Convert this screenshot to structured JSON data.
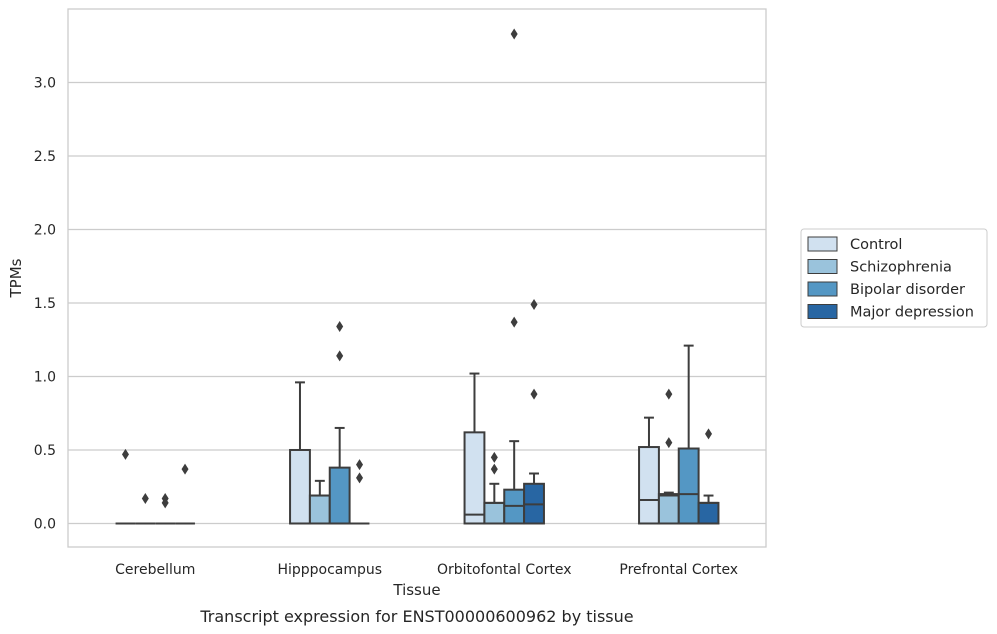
{
  "caption": "Transcript expression for ENST00000600962 by tissue",
  "chart_data": {
    "type": "boxplot",
    "xlabel": "Tissue",
    "ylabel": "TPMs",
    "ylim": [
      -0.16,
      3.5
    ],
    "yticks": [
      "0.0",
      "0.5",
      "1.0",
      "1.5",
      "2.0",
      "2.5",
      "3.0"
    ],
    "grid": true,
    "legend_position": "right",
    "categories": [
      "Cerebellum",
      "Hipppocampus",
      "Orbitofontal Cortex",
      "Prefrontal Cortex"
    ],
    "series": [
      {
        "name": "Control",
        "color": "#d1e1f0",
        "boxes": [
          {
            "q1": 0,
            "median": 0,
            "q3": 0,
            "whisker_low": 0,
            "whisker_high": 0,
            "outliers": [
              0.47
            ]
          },
          {
            "q1": 0,
            "median": 0,
            "q3": 0.5,
            "whisker_low": 0,
            "whisker_high": 0.96,
            "outliers": []
          },
          {
            "q1": 0,
            "median": 0.06,
            "q3": 0.62,
            "whisker_low": 0,
            "whisker_high": 1.02,
            "outliers": []
          },
          {
            "q1": 0,
            "median": 0.16,
            "q3": 0.52,
            "whisker_low": 0,
            "whisker_high": 0.72,
            "outliers": []
          }
        ]
      },
      {
        "name": "Schizophrenia",
        "color": "#9ac3dc",
        "boxes": [
          {
            "q1": 0,
            "median": 0,
            "q3": 0,
            "whisker_low": 0,
            "whisker_high": 0,
            "outliers": [
              0.17
            ]
          },
          {
            "q1": 0,
            "median": 0.19,
            "q3": 0.19,
            "whisker_low": 0,
            "whisker_high": 0.29,
            "outliers": []
          },
          {
            "q1": 0,
            "median": 0.14,
            "q3": 0.14,
            "whisker_low": 0,
            "whisker_high": 0.27,
            "outliers": [
              0.37,
              0.45
            ]
          },
          {
            "q1": 0,
            "median": 0.19,
            "q3": 0.2,
            "whisker_low": 0,
            "whisker_high": 0.21,
            "outliers": [
              0.55,
              0.88
            ]
          }
        ]
      },
      {
        "name": "Bipolar disorder",
        "color": "#5497c4",
        "boxes": [
          {
            "q1": 0,
            "median": 0,
            "q3": 0,
            "whisker_low": 0,
            "whisker_high": 0,
            "outliers": [
              0.14,
              0.17
            ]
          },
          {
            "q1": 0,
            "median": 0,
            "q3": 0.38,
            "whisker_low": 0,
            "whisker_high": 0.65,
            "outliers": [
              1.14,
              1.34
            ]
          },
          {
            "q1": 0,
            "median": 0.12,
            "q3": 0.23,
            "whisker_low": 0,
            "whisker_high": 0.56,
            "outliers": [
              1.37,
              3.33
            ]
          },
          {
            "q1": 0,
            "median": 0.2,
            "q3": 0.51,
            "whisker_low": 0,
            "whisker_high": 1.21,
            "outliers": []
          }
        ]
      },
      {
        "name": "Major depression",
        "color": "#2866a3",
        "boxes": [
          {
            "q1": 0,
            "median": 0,
            "q3": 0,
            "whisker_low": 0,
            "whisker_high": 0,
            "outliers": [
              0.37
            ]
          },
          {
            "q1": 0,
            "median": 0,
            "q3": 0,
            "whisker_low": 0,
            "whisker_high": 0,
            "outliers": [
              0.31,
              0.4
            ]
          },
          {
            "q1": 0,
            "median": 0.13,
            "q3": 0.27,
            "whisker_low": 0,
            "whisker_high": 0.34,
            "outliers": [
              0.88,
              1.49
            ]
          },
          {
            "q1": 0,
            "median": 0.14,
            "q3": 0.14,
            "whisker_low": 0,
            "whisker_high": 0.19,
            "outliers": [
              0.61
            ]
          }
        ]
      }
    ]
  }
}
